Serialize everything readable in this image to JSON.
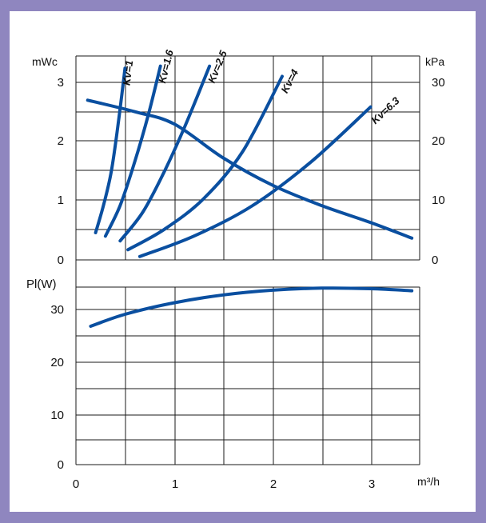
{
  "colors": {
    "curve": "#0a4fa0",
    "frame": "#8f86bf",
    "grid": "#1a1a1a"
  },
  "chart_data": [
    {
      "type": "line",
      "x_unit": "m³/h",
      "x_ticks": [
        "0",
        "1",
        "2",
        "3"
      ],
      "xlim": [
        0,
        3.5
      ],
      "y_unit_left": "mWc",
      "y_unit_right": "kPa",
      "y_ticks_left": [
        "0",
        "1",
        "2",
        "3"
      ],
      "y_ticks_right": [
        "0",
        "10",
        "20",
        "30"
      ],
      "ylim": [
        0,
        3
      ],
      "grid": true,
      "series": [
        {
          "name": "Kv=1",
          "points": [
            [
              0.2,
              0.4
            ],
            [
              0.28,
              0.8
            ],
            [
              0.36,
              1.3
            ],
            [
              0.43,
              2.0
            ],
            [
              0.5,
              2.82
            ]
          ]
        },
        {
          "name": "Kv=1.6",
          "points": [
            [
              0.3,
              0.35
            ],
            [
              0.45,
              0.8
            ],
            [
              0.6,
              1.45
            ],
            [
              0.74,
              2.15
            ],
            [
              0.86,
              2.85
            ]
          ]
        },
        {
          "name": "Kv=2.5",
          "points": [
            [
              0.45,
              0.28
            ],
            [
              0.68,
              0.7
            ],
            [
              0.9,
              1.3
            ],
            [
              1.12,
              2.0
            ],
            [
              1.36,
              2.85
            ]
          ]
        },
        {
          "name": "Kv=4",
          "points": [
            [
              0.53,
              0.15
            ],
            [
              0.9,
              0.45
            ],
            [
              1.3,
              0.9
            ],
            [
              1.7,
              1.6
            ],
            [
              2.1,
              2.7
            ]
          ]
        },
        {
          "name": "Kv=6.3",
          "points": [
            [
              0.65,
              0.05
            ],
            [
              1.2,
              0.35
            ],
            [
              1.8,
              0.8
            ],
            [
              2.4,
              1.45
            ],
            [
              3.0,
              2.25
            ]
          ]
        },
        {
          "points": [
            [
              0.12,
              2.35
            ],
            [
              0.6,
              2.18
            ],
            [
              1.0,
              2.0
            ],
            [
              1.5,
              1.5
            ],
            [
              2.0,
              1.1
            ],
            [
              2.5,
              0.8
            ],
            [
              3.0,
              0.55
            ],
            [
              3.42,
              0.32
            ]
          ]
        }
      ],
      "labels": [
        "Kv=1",
        "Kv=1.6",
        "Kv=2.5",
        "Kv=4",
        "Kv=6.3"
      ]
    },
    {
      "type": "line",
      "y_unit_left": "Pl(W)",
      "y_ticks_left": [
        "0",
        "10",
        "20",
        "30"
      ],
      "ylim": [
        0,
        34
      ],
      "x_ticks": [
        "0",
        "1",
        "2",
        "3"
      ],
      "xlim": [
        0,
        3.5
      ],
      "grid": true,
      "series": [
        {
          "points": [
            [
              0.15,
              26.5
            ],
            [
              0.5,
              28.8
            ],
            [
              1.0,
              31.0
            ],
            [
              1.5,
              32.5
            ],
            [
              2.0,
              33.4
            ],
            [
              2.5,
              33.8
            ],
            [
              3.0,
              33.7
            ],
            [
              3.42,
              33.3
            ]
          ]
        }
      ]
    }
  ]
}
